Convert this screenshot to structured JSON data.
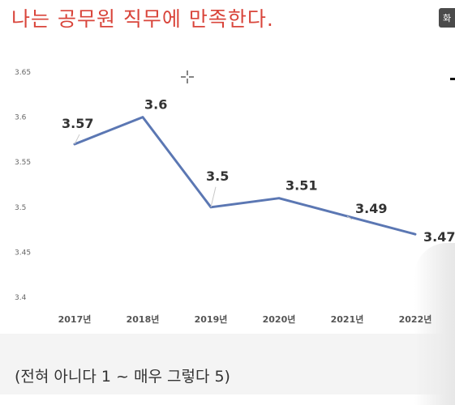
{
  "title": "나는 공무원 직무에 만족한다.",
  "note": "(전혀 아니다 1 ~ 매우 그렇다 5)",
  "corner_badge": "화",
  "colors": {
    "title": "#d9453b",
    "line": "#5b77b3"
  },
  "chart_data": {
    "type": "line",
    "categories": [
      "2017년",
      "2018년",
      "2019년",
      "2020년",
      "2021년",
      "2022년"
    ],
    "values": [
      3.57,
      3.6,
      3.5,
      3.51,
      3.49,
      3.47
    ],
    "data_labels": [
      "3.57",
      "3.6",
      "3.5",
      "3.51",
      "3.49",
      "3.47"
    ],
    "ylim": [
      3.4,
      3.65
    ],
    "yticks": [
      "3.4",
      "3.45",
      "3.5",
      "3.55",
      "3.6",
      "3.65"
    ],
    "ytick_values": [
      3.4,
      3.45,
      3.5,
      3.55,
      3.6,
      3.65
    ],
    "grid": false
  }
}
